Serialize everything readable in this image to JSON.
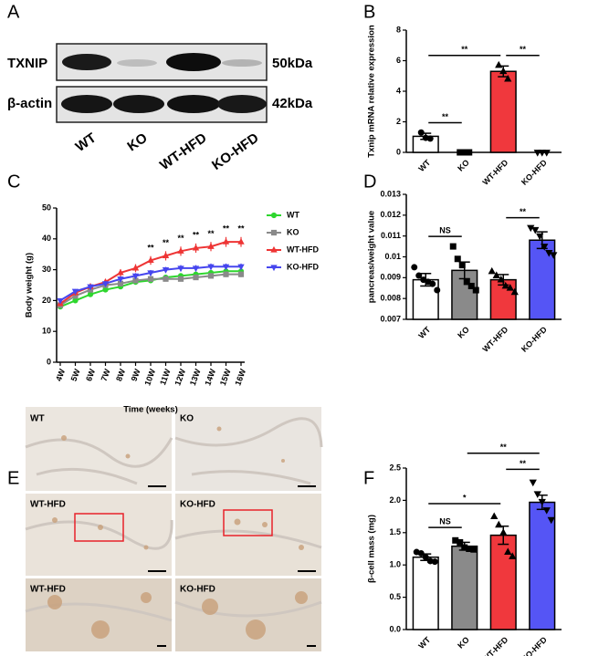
{
  "blot": {
    "panel": "A",
    "rows": [
      {
        "label": "TXNIP",
        "size": "50kDa"
      },
      {
        "label": "β-actin",
        "size": "42kDa"
      }
    ],
    "lanes": [
      "WT",
      "KO",
      "WT-HFD",
      "KO-HFD"
    ]
  },
  "chart_data": [
    {
      "type": "bar",
      "panel": "B",
      "ylabel": "Txnip mRNA relative expression",
      "categories": [
        "WT",
        "KO",
        "WT-HFD",
        "KO-HFD"
      ],
      "values": [
        1.05,
        0,
        5.3,
        0
      ],
      "errors": [
        0.2,
        0,
        0.35,
        0
      ],
      "points": [
        [
          1.3,
          0.95,
          0.9
        ],
        [
          0,
          0,
          0
        ],
        [
          5.7,
          5.3,
          4.8
        ],
        [
          0,
          0,
          0
        ]
      ],
      "colors": [
        "#ffffff",
        "#ffffff",
        "#f0383d",
        "#ffffff"
      ],
      "markers": [
        "circle",
        "square",
        "triangle",
        "triangle-down"
      ],
      "ylim": [
        0,
        8
      ],
      "yticks": [
        0,
        2,
        4,
        6,
        8
      ],
      "annotations": [
        {
          "text": "**",
          "between": [
            "WT",
            "KO"
          ]
        },
        {
          "text": "**",
          "between": [
            "WT",
            "WT-HFD"
          ]
        },
        {
          "text": "**",
          "between": [
            "WT-HFD",
            "KO-HFD"
          ]
        }
      ]
    },
    {
      "type": "line",
      "panel": "C",
      "ylabel": "Body weight (g)",
      "xlabel": "Time (weeks)",
      "categories": [
        "4W",
        "5W",
        "6W",
        "7W",
        "8W",
        "9W",
        "10W",
        "11W",
        "12W",
        "13W",
        "14W",
        "15W",
        "16W"
      ],
      "series": [
        {
          "name": "WT",
          "color": "#2ed62e",
          "marker": "circle",
          "values": [
            18,
            20,
            22,
            23.5,
            24.5,
            26,
            26.5,
            27.5,
            28,
            28.5,
            29,
            29.5,
            29.5
          ],
          "errors": [
            0.6,
            0.6,
            0.7,
            0.7,
            0.7,
            0.8,
            0.8,
            0.8,
            0.8,
            0.8,
            0.8,
            0.9,
            0.9
          ]
        },
        {
          "name": "KO",
          "color": "#8a8a8a",
          "marker": "square",
          "values": [
            18.5,
            21.5,
            23.5,
            25,
            25.5,
            26.5,
            27,
            27,
            27,
            27.5,
            28,
            28.5,
            28.5
          ],
          "errors": [
            0.6,
            0.6,
            0.7,
            0.7,
            0.7,
            0.8,
            0.8,
            0.8,
            0.8,
            0.8,
            0.8,
            0.9,
            0.9
          ]
        },
        {
          "name": "WT-HFD",
          "color": "#ee3535",
          "marker": "triangle",
          "values": [
            19,
            22.5,
            24.5,
            26,
            29,
            30.5,
            33,
            34.5,
            36,
            37,
            37.5,
            39,
            39
          ],
          "errors": [
            0.8,
            0.9,
            1,
            1,
            1.2,
            1.3,
            1.4,
            1.5,
            1.5,
            1.5,
            1.5,
            1.6,
            1.6
          ]
        },
        {
          "name": "KO-HFD",
          "color": "#4646ee",
          "marker": "triangle-down",
          "values": [
            20,
            23,
            24.5,
            25.5,
            27,
            28,
            29,
            30,
            30.5,
            30.5,
            31,
            31,
            31
          ],
          "errors": [
            0.6,
            0.7,
            0.7,
            0.8,
            0.8,
            0.9,
            0.9,
            0.9,
            1,
            1,
            1,
            1,
            1
          ]
        }
      ],
      "ylim": [
        0,
        50
      ],
      "yticks": [
        0,
        10,
        20,
        30,
        40,
        50
      ],
      "legend": "right",
      "annotations": [
        {
          "text": "**",
          "category": "10W"
        },
        {
          "text": "**",
          "category": "11W"
        },
        {
          "text": "**",
          "category": "12W"
        },
        {
          "text": "**",
          "category": "13W"
        },
        {
          "text": "**",
          "category": "14W"
        },
        {
          "text": "**",
          "category": "15W"
        },
        {
          "text": "**",
          "category": "16W"
        }
      ]
    },
    {
      "type": "bar",
      "panel": "D",
      "ylabel": "pancreas/weight value",
      "categories": [
        "WT",
        "KO",
        "WT-HFD",
        "KO-HFD"
      ],
      "values": [
        0.0089,
        0.00935,
        0.0089,
        0.0108
      ],
      "errors": [
        0.0003,
        0.0004,
        0.00025,
        0.0004
      ],
      "points": [
        [
          0.0095,
          0.0091,
          0.0089,
          0.0088,
          0.0087,
          0.0084
        ],
        [
          0.0105,
          0.0099,
          0.0096,
          0.0088,
          0.0086,
          0.0084
        ],
        [
          0.0093,
          0.0091,
          0.0089,
          0.0086,
          0.0085,
          0.0083
        ],
        [
          0.0114,
          0.0113,
          0.011,
          0.0105,
          0.0102,
          0.0101
        ]
      ],
      "colors": [
        "#ffffff",
        "#8a8a8a",
        "#f0383d",
        "#5555f5"
      ],
      "markers": [
        "circle",
        "square",
        "triangle",
        "triangle-down"
      ],
      "ylim": [
        0.007,
        0.013
      ],
      "yticks": [
        0.007,
        0.008,
        0.009,
        0.01,
        0.011,
        0.012,
        0.013
      ],
      "annotations": [
        {
          "text": "NS",
          "between": [
            "WT",
            "KO"
          ]
        },
        {
          "text": "**",
          "between": [
            "WT-HFD",
            "KO-HFD"
          ]
        }
      ]
    },
    {
      "type": "bar",
      "panel": "F",
      "ylabel": "β-cell mass (mg)",
      "categories": [
        "WT",
        "KO",
        "WT-HFD",
        "KO-HFD"
      ],
      "values": [
        1.12,
        1.29,
        1.46,
        1.97
      ],
      "errors": [
        0.05,
        0.06,
        0.14,
        0.11
      ],
      "points": [
        [
          1.2,
          1.18,
          1.12,
          1.06,
          1.05
        ],
        [
          1.38,
          1.35,
          1.27,
          1.25,
          1.24
        ],
        [
          1.75,
          1.62,
          1.5,
          1.2,
          1.13
        ],
        [
          2.28,
          2.1,
          1.98,
          1.85,
          1.7
        ]
      ],
      "colors": [
        "#ffffff",
        "#8a8a8a",
        "#f0383d",
        "#5555f5"
      ],
      "markers": [
        "circle",
        "square",
        "triangle",
        "triangle-down"
      ],
      "ylim": [
        0,
        2.5
      ],
      "yticks": [
        {
          "value": 0,
          "label": "0.0"
        },
        0.5,
        {
          "value": 1,
          "label": "1.0"
        },
        1.5,
        {
          "value": 2,
          "label": "2.0"
        },
        2.5
      ],
      "annotations": [
        {
          "text": "NS",
          "between": [
            "WT",
            "KO"
          ]
        },
        {
          "text": "*",
          "between": [
            "WT",
            "WT-HFD"
          ]
        },
        {
          "text": "**",
          "between": [
            "WT-HFD",
            "KO-HFD"
          ]
        },
        {
          "text": "**",
          "between": [
            "KO",
            "KO-HFD"
          ]
        }
      ]
    }
  ],
  "micrographs": {
    "panel": "E",
    "images": [
      "WT",
      "KO",
      "WT-HFD",
      "KO-HFD",
      "WT-HFD",
      "KO-HFD"
    ]
  }
}
